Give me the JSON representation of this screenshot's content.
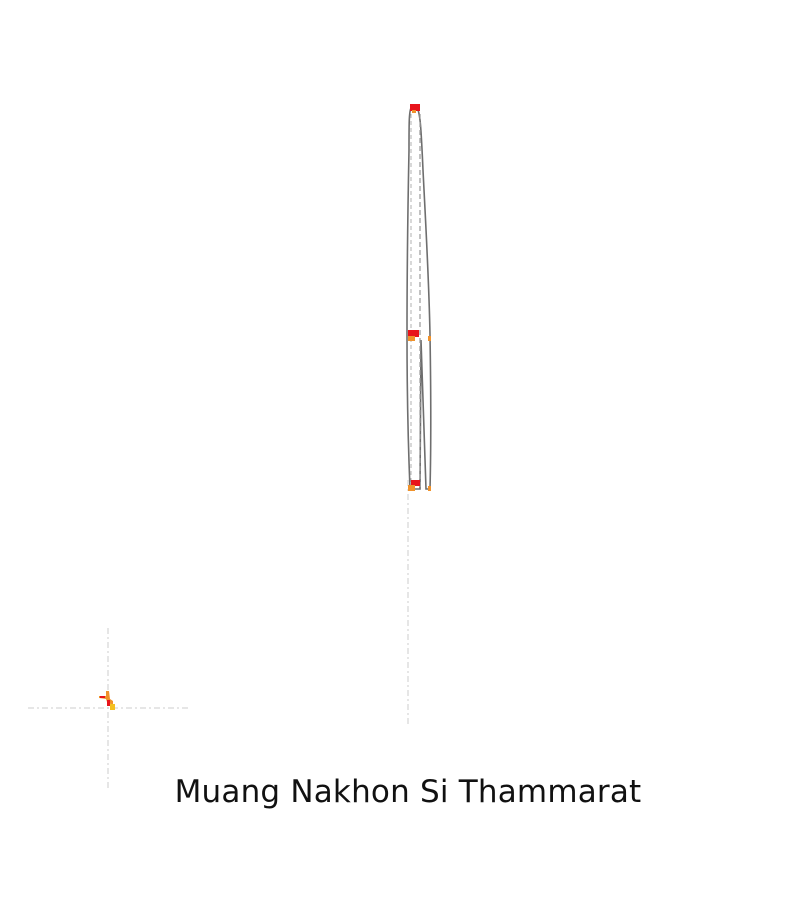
{
  "map": {
    "title": "Muang Nakhon Si Thammarat",
    "colors": {
      "outline": "#6e6e6e",
      "inner_line": "#9a9a9a",
      "crosshair": "#d6d6d6",
      "marker_red": "#e8141b",
      "marker_orange": "#f0922b",
      "marker_yellow": "#f4c020"
    }
  }
}
